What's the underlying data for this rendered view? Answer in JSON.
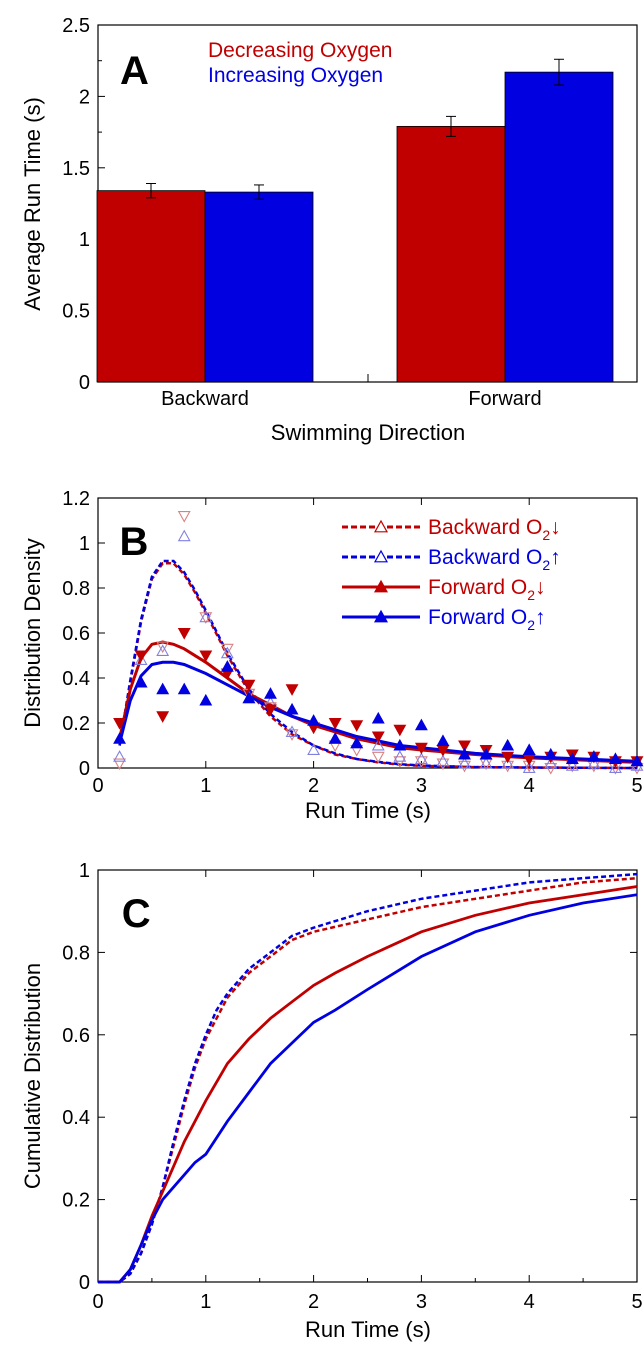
{
  "colors": {
    "red": "#c00000",
    "blue": "#0000e0",
    "red_light": "#d98080",
    "blue_light": "#8080e0"
  },
  "chart_data": [
    {
      "panel": "A",
      "type": "bar",
      "categories": [
        "Backward",
        "Forward"
      ],
      "series": [
        {
          "name": "Decreasing Oxygen",
          "color": "#c00000",
          "values": [
            1.34,
            1.79
          ],
          "errors": [
            0.05,
            0.07
          ]
        },
        {
          "name": "Increasing Oxygen",
          "color": "#0000e0",
          "values": [
            1.33,
            2.17
          ],
          "errors": [
            0.05,
            0.09
          ]
        }
      ],
      "xlabel": "Swimming Direction",
      "ylabel": "Average Run Time (s)",
      "ylim": [
        0,
        2.5
      ],
      "yticks": [
        0,
        0.5,
        1,
        1.5,
        2,
        2.5
      ],
      "ytick_labels": [
        "0",
        "0.5",
        "1",
        "1.5",
        "2",
        "2.5"
      ],
      "legend": "top-left, text only"
    },
    {
      "panel": "B",
      "type": "scatter",
      "xlabel": "Run Time (s)",
      "ylabel": "Distribution Density",
      "xlim": [
        0,
        5
      ],
      "ylim": [
        0,
        1.2
      ],
      "xticks": [
        0,
        1,
        2,
        3,
        4,
        5
      ],
      "xtick_labels": [
        "0",
        "1",
        "2",
        "3",
        "4",
        "5"
      ],
      "yticks": [
        0,
        0.2,
        0.4,
        0.6,
        0.8,
        1,
        1.2
      ],
      "ytick_labels": [
        "0",
        "0.2",
        "0.4",
        "0.6",
        "0.8",
        "1",
        "1.2"
      ],
      "legend": "top-right",
      "series": [
        {
          "name": "Backward O₂↓",
          "label_base": "Backward O",
          "label_sub": "2",
          "label_arrow": "↓",
          "color": "#c00000",
          "line": "dashed",
          "marker": "triangle-down-open",
          "points_x": [
            0.2,
            0.4,
            0.6,
            0.8,
            1.0,
            1.2,
            1.4,
            1.6,
            1.8,
            2.0,
            2.2,
            2.4,
            2.6,
            2.8,
            3.0,
            3.2,
            3.4,
            3.6,
            3.8,
            4.0,
            4.2,
            4.4,
            4.6,
            4.8,
            5.0
          ],
          "points_y": [
            0.02,
            0.5,
            0.54,
            1.12,
            0.67,
            0.53,
            0.33,
            0.27,
            0.15,
            0.18,
            0.1,
            0.08,
            0.05,
            0.03,
            0.03,
            0.02,
            0.01,
            0.02,
            0.01,
            0.01,
            0.0,
            0.01,
            0.01,
            0.0,
            0.0
          ],
          "curve_x": [
            0.2,
            0.3,
            0.4,
            0.5,
            0.6,
            0.7,
            0.8,
            0.9,
            1.0,
            1.2,
            1.4,
            1.6,
            1.8,
            2.0,
            2.2,
            2.4,
            2.6,
            2.8,
            3.0,
            3.5,
            4.0,
            4.5,
            5.0
          ],
          "curve_y": [
            0.1,
            0.38,
            0.65,
            0.84,
            0.91,
            0.91,
            0.86,
            0.78,
            0.69,
            0.5,
            0.34,
            0.23,
            0.15,
            0.1,
            0.06,
            0.04,
            0.025,
            0.015,
            0.01,
            0.004,
            0.002,
            0.001,
            0.0
          ]
        },
        {
          "name": "Backward O₂↑",
          "label_base": "Backward O",
          "label_sub": "2",
          "label_arrow": "↑",
          "color": "#0000e0",
          "line": "dashed",
          "marker": "triangle-up-open",
          "points_x": [
            0.2,
            0.4,
            0.6,
            0.8,
            1.0,
            1.2,
            1.4,
            1.6,
            1.8,
            2.0,
            2.2,
            2.4,
            2.6,
            2.8,
            3.0,
            3.2,
            3.4,
            3.6,
            3.8,
            4.0,
            4.2,
            4.4,
            4.6,
            4.8,
            5.0
          ],
          "points_y": [
            0.05,
            0.48,
            0.52,
            1.03,
            0.67,
            0.51,
            0.31,
            0.29,
            0.16,
            0.08,
            0.13,
            0.11,
            0.1,
            0.05,
            0.04,
            0.03,
            0.02,
            0.02,
            0.02,
            0.0,
            0.02,
            0.01,
            0.02,
            0.0,
            0.01
          ],
          "curve_x": [
            0.2,
            0.3,
            0.4,
            0.5,
            0.6,
            0.7,
            0.8,
            0.9,
            1.0,
            1.2,
            1.4,
            1.6,
            1.8,
            2.0,
            2.2,
            2.4,
            2.6,
            2.8,
            3.0,
            3.5,
            4.0,
            4.5,
            5.0
          ],
          "curve_y": [
            0.1,
            0.39,
            0.66,
            0.85,
            0.92,
            0.92,
            0.87,
            0.79,
            0.7,
            0.51,
            0.35,
            0.24,
            0.16,
            0.1,
            0.065,
            0.04,
            0.027,
            0.017,
            0.011,
            0.004,
            0.002,
            0.001,
            0.0
          ]
        },
        {
          "name": "Forward O₂↓",
          "label_base": "Forward O",
          "label_sub": "2",
          "label_arrow": "↓",
          "color": "#c00000",
          "line": "solid",
          "marker": "triangle-down-filled",
          "points_x": [
            0.2,
            0.4,
            0.6,
            0.8,
            1.0,
            1.2,
            1.4,
            1.6,
            1.8,
            2.0,
            2.2,
            2.4,
            2.6,
            2.8,
            3.0,
            3.2,
            3.4,
            3.6,
            3.8,
            4.0,
            4.2,
            4.4,
            4.6,
            4.8,
            5.0
          ],
          "points_y": [
            0.2,
            0.5,
            0.23,
            0.6,
            0.5,
            0.42,
            0.37,
            0.26,
            0.35,
            0.18,
            0.2,
            0.19,
            0.14,
            0.17,
            0.09,
            0.08,
            0.1,
            0.08,
            0.05,
            0.04,
            0.05,
            0.06,
            0.05,
            0.03,
            0.03
          ],
          "curve_x": [
            0.2,
            0.3,
            0.4,
            0.5,
            0.6,
            0.7,
            0.8,
            1.0,
            1.2,
            1.4,
            1.6,
            1.8,
            2.0,
            2.2,
            2.4,
            2.6,
            2.8,
            3.0,
            3.5,
            4.0,
            4.5,
            5.0
          ],
          "curve_y": [
            0.13,
            0.35,
            0.49,
            0.55,
            0.56,
            0.55,
            0.53,
            0.47,
            0.4,
            0.33,
            0.28,
            0.23,
            0.19,
            0.16,
            0.13,
            0.11,
            0.09,
            0.08,
            0.06,
            0.045,
            0.035,
            0.025
          ]
        },
        {
          "name": "Forward O₂↑",
          "label_base": "Forward O",
          "label_sub": "2",
          "label_arrow": "↑",
          "color": "#0000e0",
          "line": "solid",
          "marker": "triangle-up-filled",
          "points_x": [
            0.2,
            0.4,
            0.6,
            0.8,
            1.0,
            1.2,
            1.4,
            1.6,
            1.8,
            2.0,
            2.2,
            2.4,
            2.6,
            2.8,
            3.0,
            3.2,
            3.4,
            3.6,
            3.8,
            4.0,
            4.2,
            4.4,
            4.6,
            4.8,
            5.0
          ],
          "points_y": [
            0.13,
            0.38,
            0.35,
            0.35,
            0.3,
            0.45,
            0.31,
            0.33,
            0.26,
            0.21,
            0.13,
            0.11,
            0.22,
            0.1,
            0.19,
            0.12,
            0.06,
            0.06,
            0.1,
            0.08,
            0.06,
            0.04,
            0.05,
            0.04,
            0.03
          ],
          "curve_x": [
            0.2,
            0.3,
            0.4,
            0.5,
            0.6,
            0.7,
            0.8,
            1.0,
            1.2,
            1.4,
            1.6,
            1.8,
            2.0,
            2.2,
            2.4,
            2.6,
            2.8,
            3.0,
            3.5,
            4.0,
            4.5,
            5.0
          ],
          "curve_y": [
            0.11,
            0.3,
            0.41,
            0.46,
            0.47,
            0.47,
            0.46,
            0.42,
            0.37,
            0.32,
            0.27,
            0.23,
            0.2,
            0.17,
            0.14,
            0.12,
            0.1,
            0.09,
            0.065,
            0.05,
            0.04,
            0.03
          ]
        }
      ]
    },
    {
      "panel": "C",
      "type": "line",
      "xlabel": "Run Time (s)",
      "ylabel": "Cumulative Distribution",
      "xlim": [
        0,
        5
      ],
      "ylim": [
        0,
        1
      ],
      "xticks": [
        0,
        1,
        2,
        3,
        4,
        5
      ],
      "xtick_labels": [
        "0",
        "1",
        "2",
        "3",
        "4",
        "5"
      ],
      "yticks": [
        0,
        0.2,
        0.4,
        0.6,
        0.8,
        1
      ],
      "ytick_labels": [
        "0",
        "0.2",
        "0.4",
        "0.6",
        "0.8",
        "1"
      ],
      "series": [
        {
          "label": "Backward O₂↓",
          "color": "#c00000",
          "line": "dashed",
          "x": [
            0,
            0.2,
            0.3,
            0.4,
            0.5,
            0.6,
            0.7,
            0.8,
            0.9,
            1.0,
            1.1,
            1.2,
            1.4,
            1.6,
            1.8,
            2.0,
            2.5,
            3.0,
            3.5,
            4.0,
            4.5,
            5.0
          ],
          "y": [
            0,
            0,
            0.02,
            0.07,
            0.14,
            0.23,
            0.33,
            0.43,
            0.52,
            0.59,
            0.64,
            0.69,
            0.75,
            0.79,
            0.83,
            0.85,
            0.88,
            0.91,
            0.93,
            0.95,
            0.97,
            0.98
          ]
        },
        {
          "label": "Backward O₂↑",
          "color": "#0000e0",
          "line": "dashed",
          "x": [
            0,
            0.2,
            0.3,
            0.4,
            0.5,
            0.6,
            0.7,
            0.8,
            0.9,
            1.0,
            1.1,
            1.2,
            1.4,
            1.6,
            1.8,
            2.0,
            2.5,
            3.0,
            3.5,
            4.0,
            4.5,
            5.0
          ],
          "y": [
            0,
            0,
            0.02,
            0.07,
            0.14,
            0.23,
            0.34,
            0.44,
            0.53,
            0.6,
            0.66,
            0.7,
            0.76,
            0.8,
            0.84,
            0.86,
            0.9,
            0.93,
            0.95,
            0.97,
            0.98,
            0.99
          ]
        },
        {
          "label": "Forward O₂↓",
          "color": "#c00000",
          "line": "solid",
          "x": [
            0,
            0.2,
            0.3,
            0.4,
            0.5,
            0.6,
            0.7,
            0.8,
            0.9,
            1.0,
            1.2,
            1.4,
            1.6,
            1.8,
            2.0,
            2.2,
            2.5,
            3.0,
            3.5,
            4.0,
            4.5,
            5.0
          ],
          "y": [
            0,
            0,
            0.03,
            0.09,
            0.16,
            0.22,
            0.28,
            0.34,
            0.39,
            0.44,
            0.53,
            0.59,
            0.64,
            0.68,
            0.72,
            0.75,
            0.79,
            0.85,
            0.89,
            0.92,
            0.94,
            0.96
          ]
        },
        {
          "label": "Forward O₂↑",
          "color": "#0000e0",
          "line": "solid",
          "x": [
            0,
            0.2,
            0.3,
            0.4,
            0.5,
            0.6,
            0.7,
            0.8,
            0.9,
            1.0,
            1.2,
            1.4,
            1.6,
            1.8,
            2.0,
            2.2,
            2.5,
            3.0,
            3.5,
            4.0,
            4.5,
            5.0
          ],
          "y": [
            0,
            0,
            0.03,
            0.09,
            0.15,
            0.2,
            0.23,
            0.26,
            0.29,
            0.31,
            0.39,
            0.46,
            0.53,
            0.58,
            0.63,
            0.66,
            0.71,
            0.79,
            0.85,
            0.89,
            0.92,
            0.94
          ]
        }
      ]
    }
  ]
}
